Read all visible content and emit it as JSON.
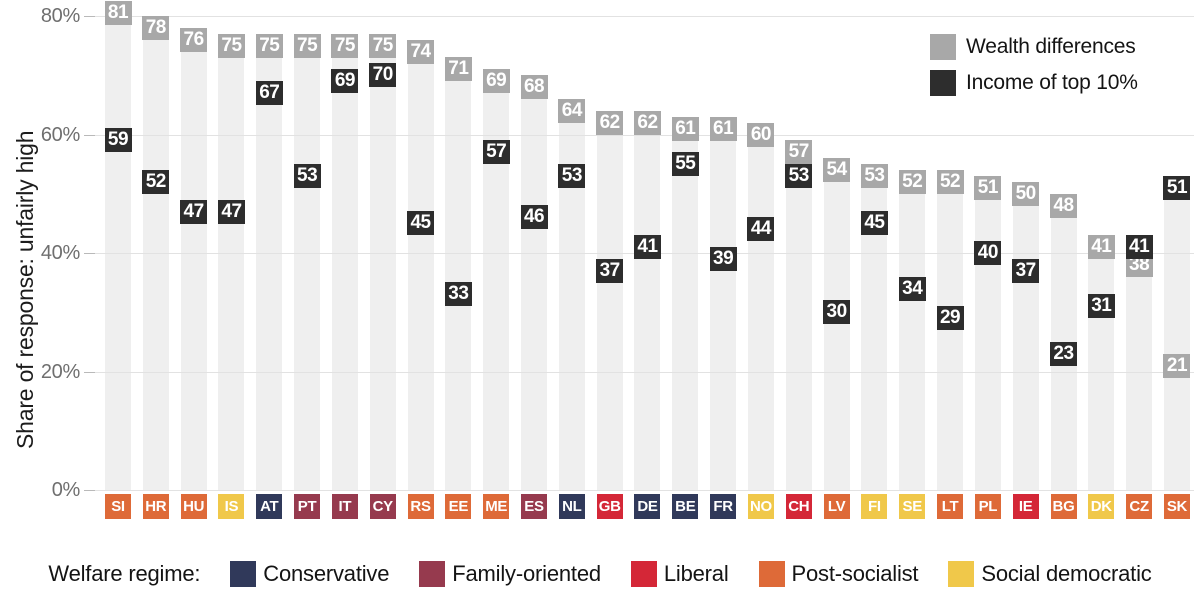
{
  "chart_data": {
    "type": "bar",
    "title": "",
    "xlabel": "",
    "ylabel": "Share of response: unfairly high",
    "ylim": [
      0,
      85
    ],
    "grid": true,
    "legend_position": "top-right",
    "yticks": [
      {
        "value": 0,
        "label": "0%"
      },
      {
        "value": 20,
        "label": "20%"
      },
      {
        "value": 40,
        "label": "40%"
      },
      {
        "value": 60,
        "label": "60%"
      },
      {
        "value": 80,
        "label": "80%"
      }
    ],
    "series": [
      {
        "name": "Wealth differences",
        "key": "wealth",
        "color": "#a8a8a8"
      },
      {
        "name": "Income of top 10%",
        "key": "income",
        "color": "#2d2d2d"
      }
    ],
    "band_color": "#efefef",
    "grid_color": "#e2e2e2",
    "regime_colors": {
      "Conservative": "#30395a",
      "Family-oriented": "#963a4e",
      "Liberal": "#d42737",
      "Post-socialist": "#de6a38",
      "Social democratic": "#f0c84a"
    },
    "countries": [
      {
        "code": "SI",
        "regime": "Post-socialist",
        "wealth": 81,
        "income": 59
      },
      {
        "code": "HR",
        "regime": "Post-socialist",
        "wealth": 78,
        "income": 52
      },
      {
        "code": "HU",
        "regime": "Post-socialist",
        "wealth": 76,
        "income": 47
      },
      {
        "code": "IS",
        "regime": "Social democratic",
        "wealth": 75,
        "income": 47
      },
      {
        "code": "AT",
        "regime": "Conservative",
        "wealth": 75,
        "income": 67
      },
      {
        "code": "PT",
        "regime": "Family-oriented",
        "wealth": 75,
        "income": 53
      },
      {
        "code": "IT",
        "regime": "Family-oriented",
        "wealth": 75,
        "income": 69
      },
      {
        "code": "CY",
        "regime": "Family-oriented",
        "wealth": 75,
        "income": 70
      },
      {
        "code": "RS",
        "regime": "Post-socialist",
        "wealth": 74,
        "income": 45
      },
      {
        "code": "EE",
        "regime": "Post-socialist",
        "wealth": 71,
        "income": 33
      },
      {
        "code": "ME",
        "regime": "Post-socialist",
        "wealth": 69,
        "income": 57
      },
      {
        "code": "ES",
        "regime": "Family-oriented",
        "wealth": 68,
        "income": 46
      },
      {
        "code": "NL",
        "regime": "Conservative",
        "wealth": 64,
        "income": 53
      },
      {
        "code": "GB",
        "regime": "Liberal",
        "wealth": 62,
        "income": 37
      },
      {
        "code": "DE",
        "regime": "Conservative",
        "wealth": 62,
        "income": 41
      },
      {
        "code": "BE",
        "regime": "Conservative",
        "wealth": 61,
        "income": 55
      },
      {
        "code": "FR",
        "regime": "Conservative",
        "wealth": 61,
        "income": 39
      },
      {
        "code": "NO",
        "regime": "Social democratic",
        "wealth": 60,
        "income": 44
      },
      {
        "code": "CH",
        "regime": "Liberal",
        "wealth": 57,
        "income": 53
      },
      {
        "code": "LV",
        "regime": "Post-socialist",
        "wealth": 54,
        "income": 30
      },
      {
        "code": "FI",
        "regime": "Social democratic",
        "wealth": 53,
        "income": 45
      },
      {
        "code": "SE",
        "regime": "Social democratic",
        "wealth": 52,
        "income": 34
      },
      {
        "code": "LT",
        "regime": "Post-socialist",
        "wealth": 52,
        "income": 29
      },
      {
        "code": "PL",
        "regime": "Post-socialist",
        "wealth": 51,
        "income": 40
      },
      {
        "code": "IE",
        "regime": "Liberal",
        "wealth": 50,
        "income": 37
      },
      {
        "code": "BG",
        "regime": "Post-socialist",
        "wealth": 48,
        "income": 23
      },
      {
        "code": "DK",
        "regime": "Social democratic",
        "wealth": 41,
        "income": 31
      },
      {
        "code": "CZ",
        "regime": "Post-socialist",
        "wealth": 38,
        "income": 41
      },
      {
        "code": "SK",
        "regime": "Post-socialist",
        "wealth": 21,
        "income": 51
      }
    ]
  },
  "welfare_legend": {
    "title": "Welfare regime:",
    "items": [
      {
        "label": "Conservative",
        "color": "#30395a"
      },
      {
        "label": "Family-oriented",
        "color": "#963a4e"
      },
      {
        "label": "Liberal",
        "color": "#d42737"
      },
      {
        "label": "Post-socialist",
        "color": "#de6a38"
      },
      {
        "label": "Social democratic",
        "color": "#f0c84a"
      }
    ]
  }
}
